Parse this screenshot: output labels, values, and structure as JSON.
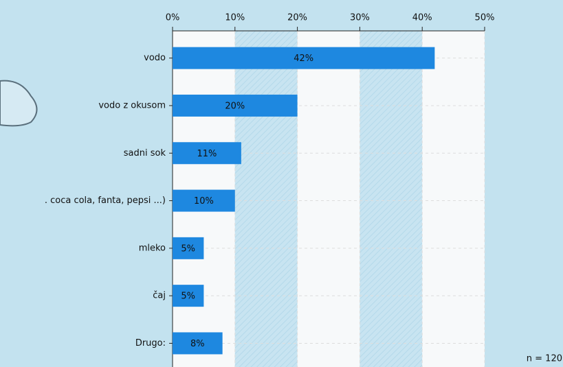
{
  "chart_data": {
    "type": "hbar",
    "categories": [
      "vodo",
      "vodo z okusom",
      "sadni sok",
      ". coca cola, fanta, pepsi ...)",
      "mleko",
      "čaj",
      "Drugo:"
    ],
    "values": [
      42,
      20,
      11,
      10,
      5,
      5,
      8
    ],
    "value_labels": [
      "42%",
      "20%",
      "11%",
      "10%",
      "5%",
      "5%",
      "8%"
    ],
    "color": "#1e88e0",
    "xlim": [
      0,
      50
    ],
    "xticks": [
      {
        "value": 0,
        "label": "0%"
      },
      {
        "value": 10,
        "label": "10%"
      },
      {
        "value": 20,
        "label": "20%"
      },
      {
        "value": 30,
        "label": "30%"
      },
      {
        "value": 40,
        "label": "40%"
      },
      {
        "value": 50,
        "label": "50%"
      }
    ],
    "grid": true,
    "annotation": "n = 120"
  }
}
